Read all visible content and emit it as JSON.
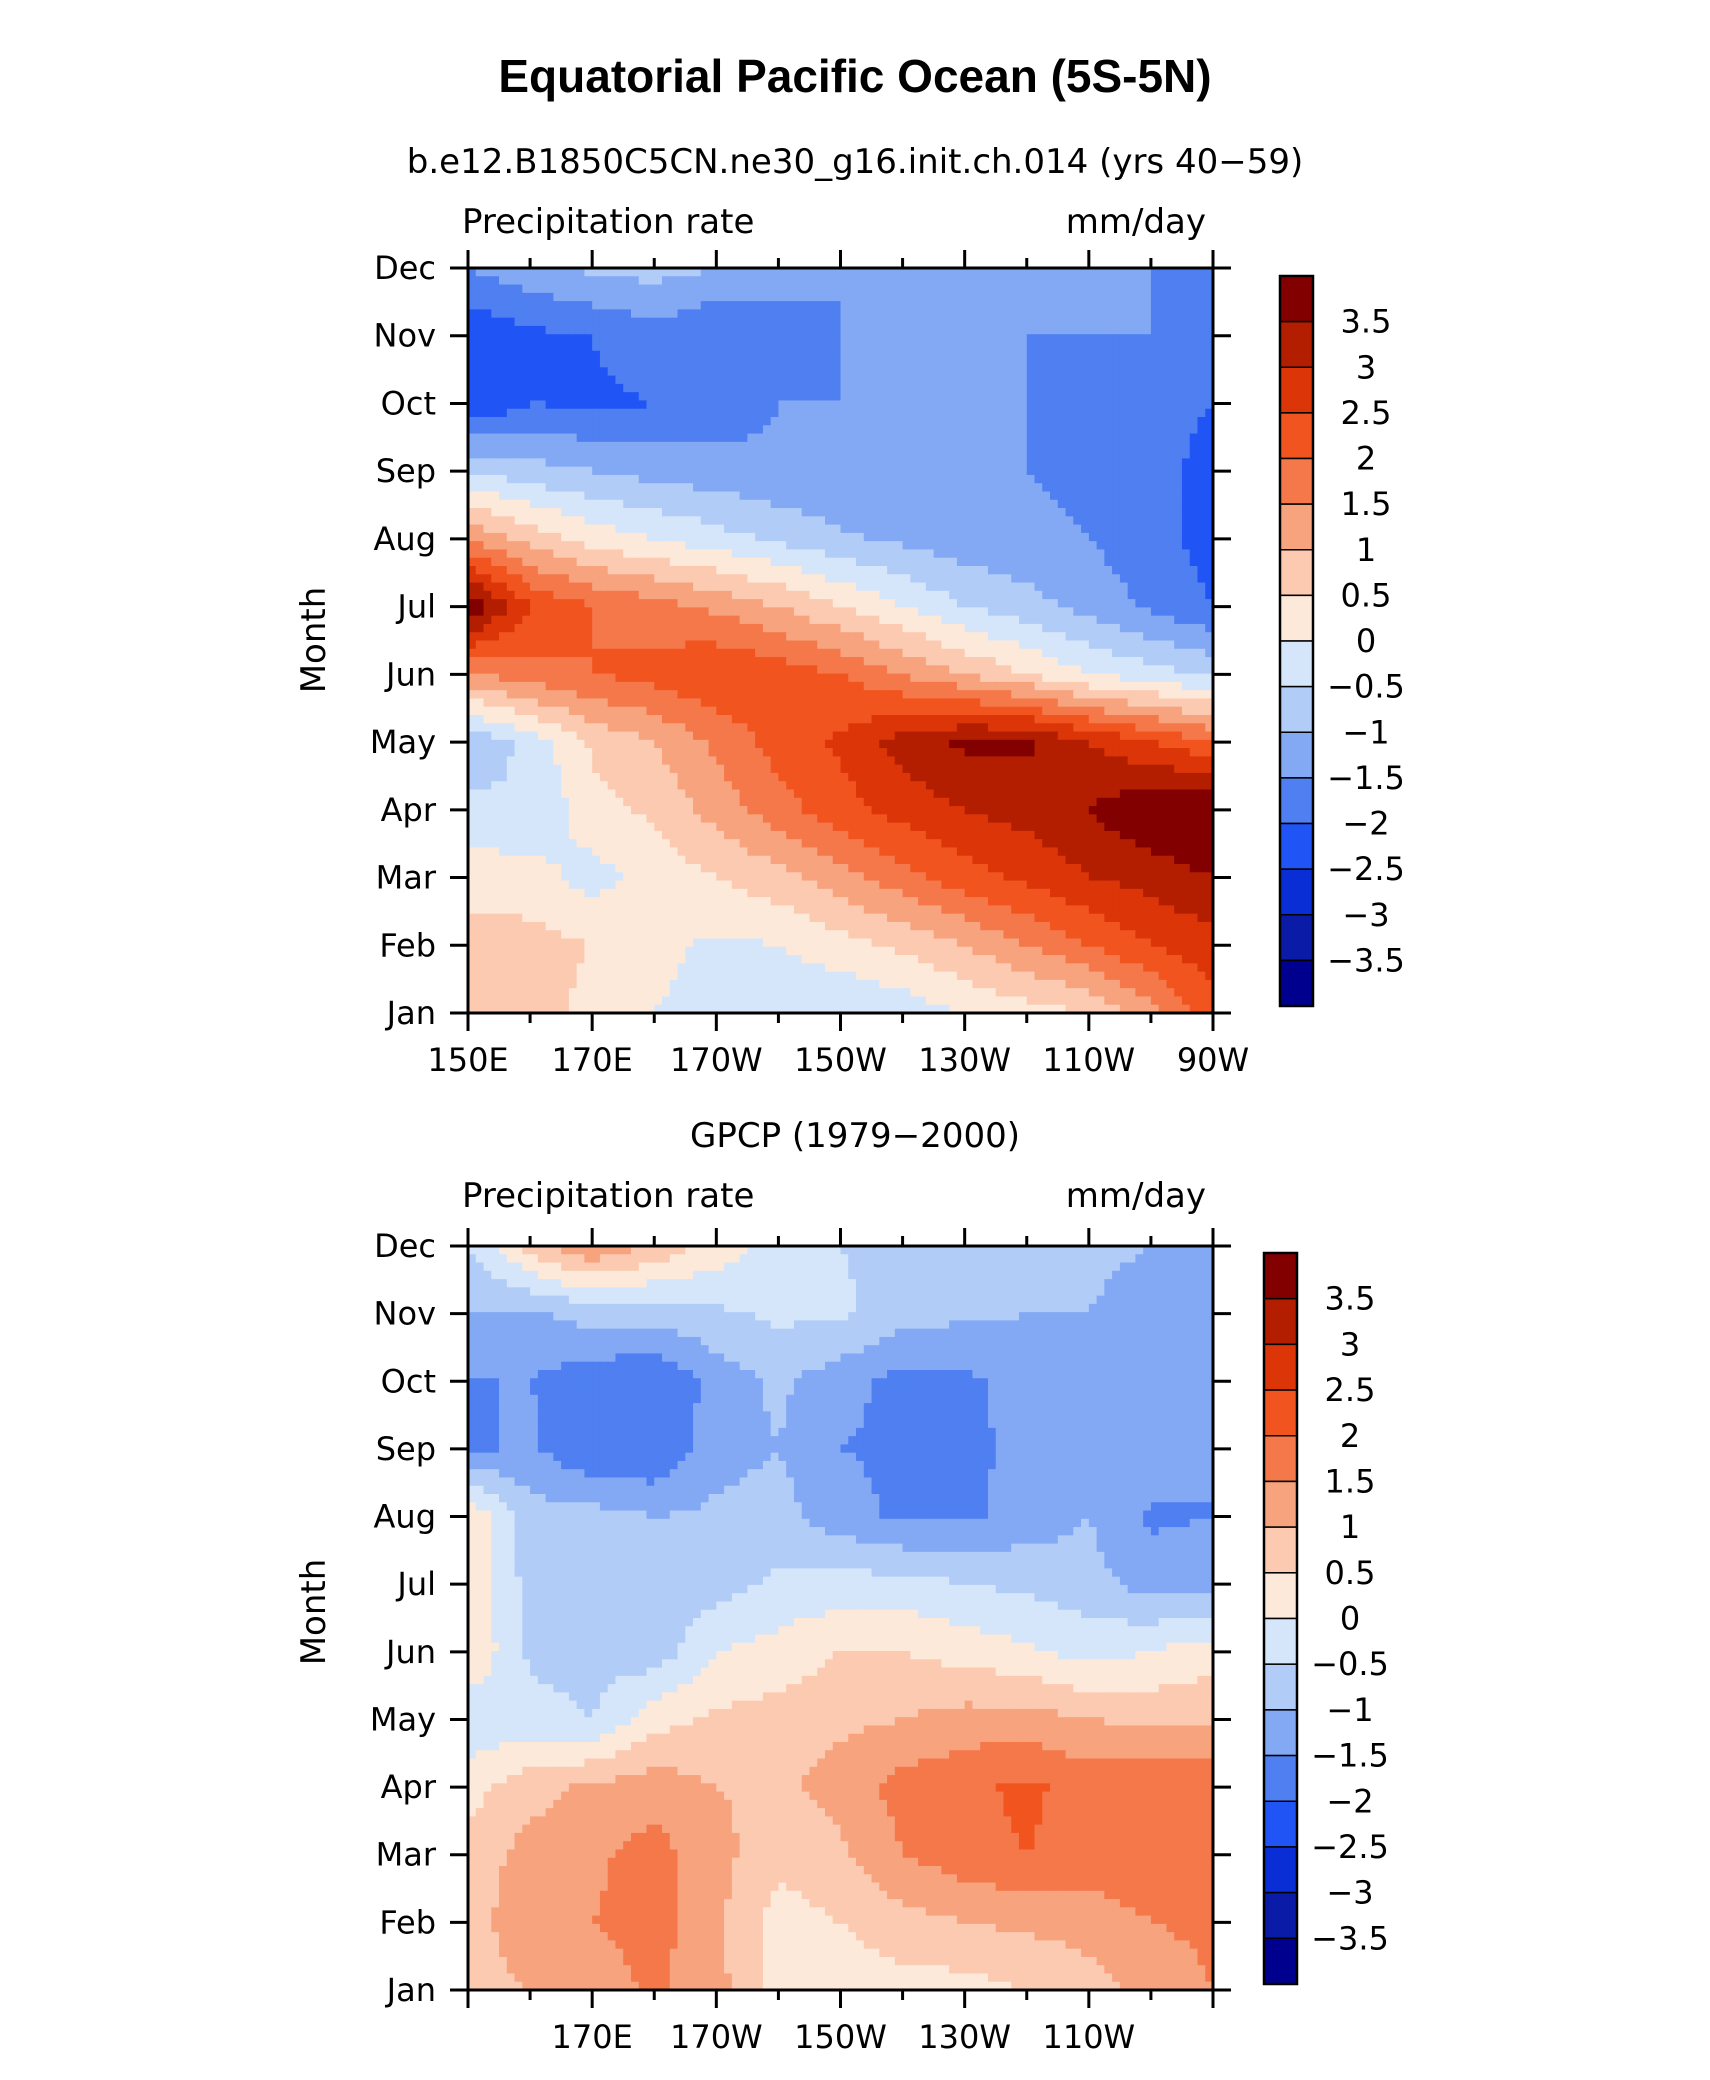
{
  "figure": {
    "title": "Equatorial Pacific Ocean (5S-5N)"
  },
  "colorbar": {
    "labels": [
      "3.5",
      "3",
      "2.5",
      "2",
      "1.5",
      "1",
      "0.5",
      "0",
      "−0.5",
      "−1",
      "−1.5",
      "−2",
      "−2.5",
      "−3",
      "−3.5"
    ],
    "colors": [
      "#820000",
      "#b31e00",
      "#db3508",
      "#f2541f",
      "#f4784a",
      "#f7a37e",
      "#fbcab1",
      "#fde9d9",
      "#d6e6fa",
      "#b1ccf7",
      "#84a9f4",
      "#4f7ff0",
      "#2054f5",
      "#0a2ed6",
      "#0a1ba8",
      "#00008e"
    ]
  },
  "chart_data": [
    {
      "type": "heatmap",
      "title": "b.e12.B1850C5CN.ne30_g16.init.ch.014 (yrs 40−59)",
      "left_label": "Precipitation rate",
      "right_label": "mm/day",
      "ylabel": "Month",
      "xlabel": "",
      "y_categories": [
        "Jan",
        "Feb",
        "Mar",
        "Apr",
        "May",
        "Jun",
        "Jul",
        "Aug",
        "Sep",
        "Oct",
        "Nov",
        "Dec"
      ],
      "x_ticks": [
        "150E",
        "170E",
        "170W",
        "150W",
        "130W",
        "110W",
        "90W"
      ],
      "x_range": [
        "150E",
        "90W"
      ],
      "contour_levels": [
        -3.5,
        -3,
        -2.5,
        -2,
        -1.5,
        -1,
        -0.5,
        0,
        0.5,
        1,
        1.5,
        2,
        2.5,
        3,
        3.5
      ],
      "values": [
        [
          1.0,
          0.8,
          0.3,
          0.0,
          -0.1,
          -0.3,
          -0.5,
          -0.3,
          0.0,
          0.3,
          0.5,
          1.3,
          2.3
        ],
        [
          0.7,
          0.7,
          0.5,
          0.1,
          -0.1,
          0.0,
          0.3,
          0.6,
          1.0,
          1.5,
          2.0,
          2.5,
          2.8
        ],
        [
          0.3,
          0.2,
          -0.2,
          0.2,
          0.5,
          0.8,
          1.3,
          1.8,
          2.3,
          2.6,
          3.0,
          3.2,
          3.5
        ],
        [
          -0.3,
          -0.5,
          0.3,
          0.6,
          1.2,
          1.8,
          2.3,
          2.7,
          3.0,
          3.2,
          3.5,
          4.0,
          4.2
        ],
        [
          -1.0,
          -0.3,
          0.6,
          1.0,
          1.6,
          2.2,
          2.6,
          3.2,
          3.6,
          3.6,
          3.0,
          2.5,
          2.0
        ],
        [
          1.4,
          1.8,
          2.0,
          2.2,
          2.5,
          2.3,
          2.0,
          1.5,
          1.0,
          0.5,
          0.0,
          -0.3,
          -0.6
        ],
        [
          4.0,
          2.5,
          2.0,
          1.7,
          1.4,
          1.0,
          0.5,
          0.0,
          -0.5,
          -0.8,
          -1.2,
          -1.6,
          -2.0
        ],
        [
          1.5,
          0.8,
          0.3,
          0.0,
          -0.3,
          -0.6,
          -0.9,
          -1.1,
          -1.3,
          -1.4,
          -1.5,
          -1.8,
          -2.2
        ],
        [
          -0.5,
          -0.8,
          -1.0,
          -1.2,
          -1.3,
          -1.4,
          -1.5,
          -1.5,
          -1.5,
          -1.5,
          -1.6,
          -1.9,
          -2.1
        ],
        [
          -2.5,
          -2.0,
          -2.1,
          -2.0,
          -1.8,
          -1.5,
          -1.5,
          -1.5,
          -1.5,
          -1.5,
          -1.6,
          -1.9,
          -2.0
        ],
        [
          -2.4,
          -2.1,
          -2.0,
          -1.7,
          -2.0,
          -1.7,
          -1.5,
          -1.5,
          -1.5,
          -1.5,
          -1.5,
          -1.5,
          -1.7
        ],
        [
          -1.5,
          -1.2,
          -0.9,
          -0.8,
          -1.0,
          -1.3,
          -1.5,
          -1.5,
          -1.5,
          -1.5,
          -1.5,
          -1.5,
          -1.5
        ]
      ]
    },
    {
      "type": "heatmap",
      "title": "GPCP (1979−2000)",
      "left_label": "Precipitation rate",
      "right_label": "mm/day",
      "ylabel": "Month",
      "xlabel": "",
      "y_categories": [
        "Jan",
        "Feb",
        "Mar",
        "Apr",
        "May",
        "Jun",
        "Jul",
        "Aug",
        "Sep",
        "Oct",
        "Nov",
        "Dec"
      ],
      "x_ticks": [
        "170E",
        "170W",
        "150W",
        "130W",
        "110W"
      ],
      "x_range": [
        "150E",
        "90W"
      ],
      "contour_levels": [
        -3.5,
        -3,
        -2.5,
        -2,
        -1.5,
        -1,
        -0.5,
        0,
        0.5,
        1,
        1.5,
        2,
        2.5,
        3,
        3.5
      ],
      "values": [
        [
          0.8,
          1.0,
          1.2,
          1.6,
          1.2,
          0.2,
          0.2,
          0.3,
          0.3,
          0.5,
          0.8,
          1.2,
          1.5
        ],
        [
          0.8,
          1.3,
          1.5,
          1.7,
          1.1,
          0.3,
          0.5,
          0.8,
          1.0,
          1.1,
          1.2,
          1.5,
          1.6
        ],
        [
          0.7,
          1.2,
          1.4,
          1.7,
          1.2,
          0.6,
          0.9,
          1.5,
          1.8,
          2.0,
          1.8,
          1.9,
          1.9
        ],
        [
          0.3,
          0.8,
          1.1,
          1.3,
          1.0,
          0.9,
          1.2,
          1.7,
          1.9,
          2.1,
          1.8,
          2.0,
          1.9
        ],
        [
          -0.4,
          -0.3,
          -0.5,
          0.3,
          0.6,
          0.7,
          0.9,
          1.0,
          1.2,
          1.2,
          1.0,
          0.9,
          0.9
        ],
        [
          0.5,
          -0.6,
          -0.7,
          -0.8,
          0.0,
          0.2,
          0.5,
          0.5,
          0.3,
          0.1,
          -0.2,
          0.0,
          0.3
        ],
        [
          0.4,
          -0.7,
          -0.8,
          -0.9,
          -0.7,
          -0.4,
          -0.3,
          -0.3,
          -0.5,
          -0.6,
          -0.8,
          -1.2,
          -1.2
        ],
        [
          0.5,
          -0.8,
          -0.8,
          -1.0,
          -0.9,
          -0.8,
          -1.3,
          -1.6,
          -1.6,
          -1.3,
          -1.0,
          -1.6,
          -1.5
        ],
        [
          -1.6,
          -1.4,
          -2.0,
          -2.0,
          -1.2,
          -1.0,
          -1.5,
          -1.6,
          -1.6,
          -1.4,
          -1.1,
          -1.0,
          -1.5
        ],
        [
          -1.5,
          -1.5,
          -1.8,
          -2.0,
          -1.3,
          -0.9,
          -1.3,
          -1.7,
          -1.6,
          -1.3,
          -1.1,
          -1.0,
          -1.5
        ],
        [
          -1.0,
          -1.1,
          -0.8,
          -0.8,
          -0.6,
          -0.4,
          -0.4,
          -0.8,
          -0.9,
          -1.0,
          -1.0,
          -1.2,
          -1.3
        ],
        [
          -0.5,
          0.7,
          1.5,
          0.9,
          0.3,
          -0.2,
          -0.5,
          -0.6,
          -0.7,
          -0.8,
          -0.9,
          -1.0,
          -1.0
        ]
      ]
    }
  ]
}
